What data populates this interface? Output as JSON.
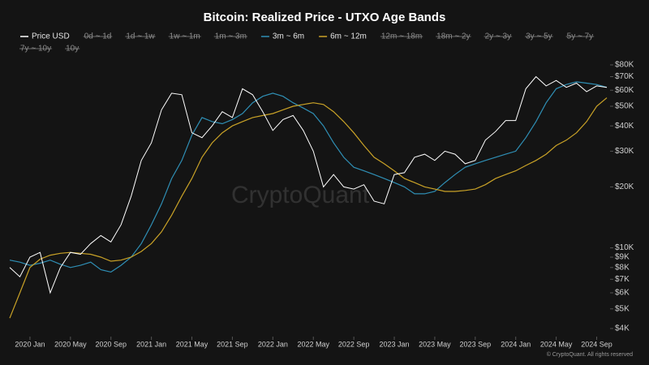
{
  "chart_data": {
    "type": "line",
    "title": "Bitcoin: Realized Price - UTXO Age Bands",
    "watermark": "CryptoQuant",
    "footer": "© CryptoQuant. All rights reserved",
    "log_scale": true,
    "grid": false,
    "x": [
      "2019-11",
      "2019-12",
      "2020-01",
      "2020-02",
      "2020-03",
      "2020-04",
      "2020-05",
      "2020-06",
      "2020-07",
      "2020-08",
      "2020-09",
      "2020-10",
      "2020-11",
      "2020-12",
      "2021-01",
      "2021-02",
      "2021-03",
      "2021-04",
      "2021-05",
      "2021-06",
      "2021-07",
      "2021-08",
      "2021-09",
      "2021-10",
      "2021-11",
      "2021-12",
      "2022-01",
      "2022-02",
      "2022-03",
      "2022-04",
      "2022-05",
      "2022-06",
      "2022-07",
      "2022-08",
      "2022-09",
      "2022-10",
      "2022-11",
      "2022-12",
      "2023-01",
      "2023-02",
      "2023-03",
      "2023-04",
      "2023-05",
      "2023-06",
      "2023-07",
      "2023-08",
      "2023-09",
      "2023-10",
      "2023-11",
      "2023-12",
      "2024-01",
      "2024-02",
      "2024-03",
      "2024-04",
      "2024-05",
      "2024-06",
      "2024-07",
      "2024-08",
      "2024-09",
      "2024-10"
    ],
    "xlim": [
      "2019-11",
      "2024-10"
    ],
    "xticks": [
      {
        "value": "2020-01",
        "label": "2020 Jan"
      },
      {
        "value": "2020-05",
        "label": "2020 May"
      },
      {
        "value": "2020-09",
        "label": "2020 Sep"
      },
      {
        "value": "2021-01",
        "label": "2021 Jan"
      },
      {
        "value": "2021-05",
        "label": "2021 May"
      },
      {
        "value": "2021-09",
        "label": "2021 Sep"
      },
      {
        "value": "2022-01",
        "label": "2022 Jan"
      },
      {
        "value": "2022-05",
        "label": "2022 May"
      },
      {
        "value": "2022-09",
        "label": "2022 Sep"
      },
      {
        "value": "2023-01",
        "label": "2023 Jan"
      },
      {
        "value": "2023-05",
        "label": "2023 May"
      },
      {
        "value": "2023-09",
        "label": "2023 Sep"
      },
      {
        "value": "2024-01",
        "label": "2024 Jan"
      },
      {
        "value": "2024-05",
        "label": "2024 May"
      },
      {
        "value": "2024-09",
        "label": "2024 Sep"
      }
    ],
    "ylim": [
      4000,
      80000
    ],
    "yticks": [
      {
        "value": 4000,
        "label": "$4K"
      },
      {
        "value": 5000,
        "label": "$5K"
      },
      {
        "value": 6000,
        "label": "$6K"
      },
      {
        "value": 7000,
        "label": "$7K"
      },
      {
        "value": 8000,
        "label": "$8K"
      },
      {
        "value": 9000,
        "label": "$9K"
      },
      {
        "value": 10000,
        "label": "$10K"
      },
      {
        "value": 20000,
        "label": "$20K"
      },
      {
        "value": 30000,
        "label": "$30K"
      },
      {
        "value": 40000,
        "label": "$40K"
      },
      {
        "value": 50000,
        "label": "$50K"
      },
      {
        "value": 60000,
        "label": "$60K"
      },
      {
        "value": 70000,
        "label": "$70K"
      },
      {
        "value": 80000,
        "label": "$80K"
      }
    ],
    "series": [
      {
        "name": "Price USD",
        "color": "#ffffff",
        "visible": true,
        "values": [
          8000,
          7200,
          9000,
          9500,
          6000,
          8000,
          9500,
          9300,
          10500,
          11500,
          10700,
          13000,
          18000,
          27000,
          33000,
          48000,
          58000,
          57000,
          37000,
          35000,
          40000,
          47000,
          44000,
          61000,
          57000,
          47000,
          38000,
          43000,
          45000,
          38000,
          30000,
          20000,
          23000,
          20000,
          19500,
          20500,
          17000,
          16500,
          23000,
          23500,
          28000,
          29000,
          27000,
          30000,
          29000,
          26000,
          27000,
          34000,
          37500,
          42500,
          42500,
          61000,
          70000,
          63000,
          67000,
          62000,
          65000,
          59000,
          63000,
          62000
        ]
      },
      {
        "name": "0d ~ 1d",
        "visible": false
      },
      {
        "name": "1d ~ 1w",
        "visible": false
      },
      {
        "name": "1w ~ 1m",
        "visible": false
      },
      {
        "name": "1m ~ 3m",
        "visible": false
      },
      {
        "name": "3m ~ 6m",
        "color": "#2f8fb5",
        "visible": true,
        "values": [
          8700,
          8500,
          8200,
          8400,
          8700,
          8300,
          8000,
          8200,
          8500,
          7800,
          7600,
          8200,
          9000,
          10500,
          13000,
          16500,
          22000,
          27000,
          36000,
          44000,
          42000,
          41000,
          43000,
          46000,
          52000,
          56000,
          58000,
          56000,
          52000,
          49000,
          46000,
          40000,
          33000,
          28000,
          25000,
          24000,
          23000,
          22000,
          21000,
          20000,
          18500,
          18500,
          19000,
          21000,
          23000,
          25000,
          26000,
          27000,
          28000,
          29000,
          30000,
          35000,
          42000,
          52000,
          61000,
          64000,
          66000,
          65000,
          64000,
          62000
        ]
      },
      {
        "name": "6m ~ 12m",
        "color": "#c9a227",
        "visible": true,
        "values": [
          4500,
          6000,
          8000,
          8800,
          9200,
          9400,
          9500,
          9400,
          9300,
          9000,
          8600,
          8700,
          9000,
          9600,
          10500,
          12000,
          14500,
          18000,
          22000,
          28000,
          33000,
          37000,
          40000,
          42000,
          44000,
          45000,
          46000,
          48000,
          50000,
          51000,
          52000,
          51000,
          47000,
          42000,
          37000,
          32000,
          28000,
          26000,
          24000,
          22000,
          21000,
          20000,
          19500,
          19000,
          19000,
          19200,
          19500,
          20500,
          22000,
          23000,
          24000,
          25500,
          27000,
          29000,
          32000,
          34000,
          37000,
          42000,
          50000,
          55000
        ]
      },
      {
        "name": "12m ~ 18m",
        "visible": false
      },
      {
        "name": "18m ~ 2y",
        "visible": false
      },
      {
        "name": "2y ~ 3y",
        "visible": false
      },
      {
        "name": "3y ~ 5y",
        "visible": false
      },
      {
        "name": "5y ~ 7y",
        "visible": false
      },
      {
        "name": "7y ~ 10y",
        "visible": false
      },
      {
        "name": "10y",
        "visible": false
      }
    ]
  }
}
